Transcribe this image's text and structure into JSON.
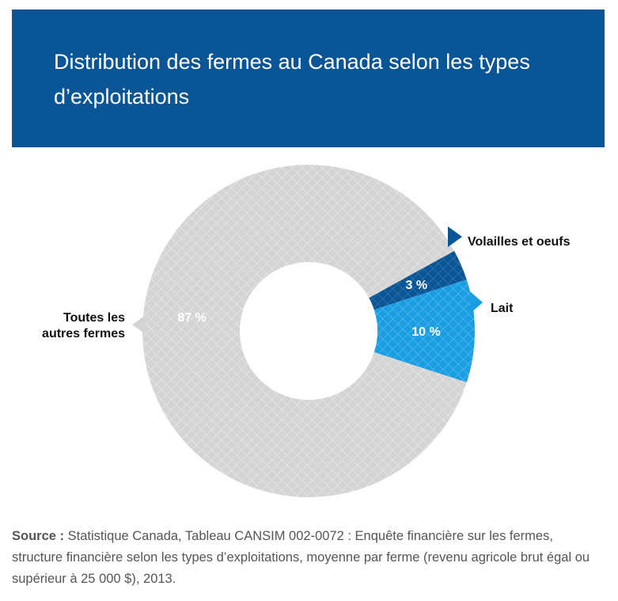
{
  "header": {
    "title": "Distribution des fermes au Canada selon les types d’exploitations"
  },
  "chart_data": {
    "type": "pie",
    "donut": true,
    "title": "Distribution des fermes au Canada selon les types d’exploitations",
    "unit": "%",
    "slices": [
      {
        "label": "Toutes les autres fermes",
        "label_lines": [
          "Toutes les",
          "autres fermes"
        ],
        "value": 87,
        "value_label": "87 %",
        "color": "#d4d4d4",
        "hatch_color": "#ececec",
        "label_side": "left"
      },
      {
        "label": "Lait",
        "label_lines": [
          "Lait"
        ],
        "value": 10,
        "value_label": "10 %",
        "color": "#1b9de2",
        "hatch_color": "#5ec0f2",
        "label_side": "right"
      },
      {
        "label": "Volailles et oeufs",
        "label_lines": [
          "Volailles et oeufs"
        ],
        "value": 3,
        "value_label": "3 %",
        "color": "#0a5595",
        "hatch_color": "#3f7cb5",
        "label_side": "right"
      }
    ]
  },
  "footer": {
    "source_label": "Source :",
    "source_text": "Statistique Canada, Tableau CANSIM 002-0072 : Enquête financière sur les fermes, structure financière selon les types d’exploitations, moyenne par ferme (revenu agricole brut égal ou supérieur à 25 000 $), 2013."
  }
}
